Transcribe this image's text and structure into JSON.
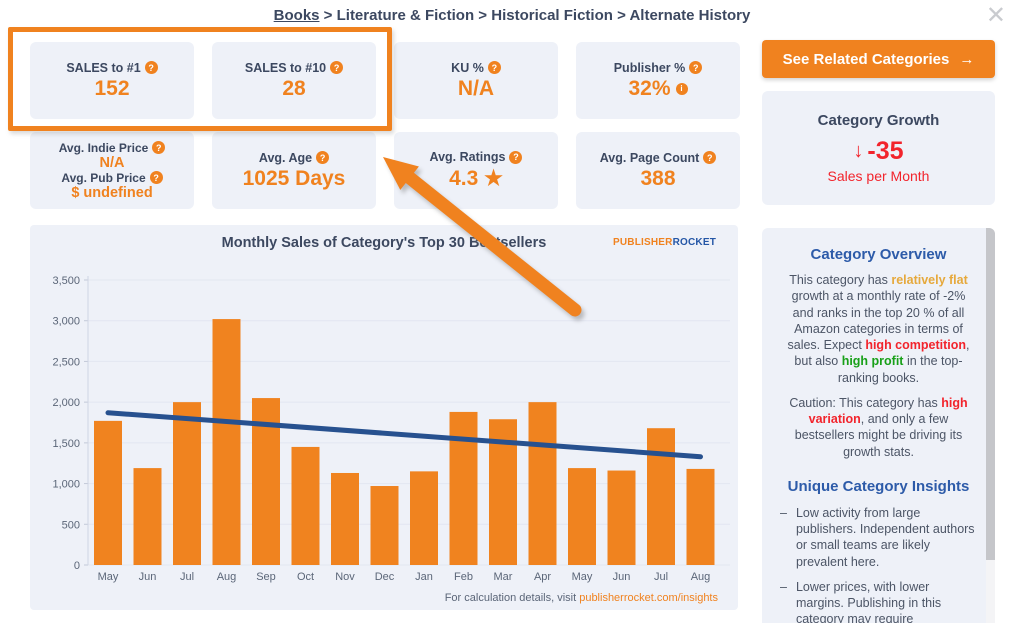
{
  "colors": {
    "accent_orange": "#f0821f",
    "navy": "#3c4860",
    "heading_blue": "#2d5ba9",
    "alert_red": "#f2242c",
    "good_green": "#18a018",
    "flat_gold": "#e6a93c",
    "card_bg": "#eef1f8"
  },
  "breadcrumb": {
    "items": [
      "Books",
      "Literature & Fiction",
      "Historical Fiction",
      "Alternate History"
    ],
    "separator": " > "
  },
  "icons": {
    "help": "?",
    "info": "i",
    "close": "✕",
    "star": "★",
    "button_arrow": "→",
    "down_arrow": "↓",
    "bullet": "–"
  },
  "stats": {
    "cards": [
      {
        "label": "SALES to #1",
        "value": "152"
      },
      {
        "label": "SALES to #10",
        "value": "28"
      },
      {
        "label": "KU %",
        "value": "N/A"
      },
      {
        "label": "Publisher %",
        "value": "32%"
      },
      {
        "label1": "Avg. Indie Price",
        "value1": "N/A",
        "label2": "Avg. Pub Price",
        "value2": "$ undefined"
      },
      {
        "label": "Avg. Age",
        "value": "1025 Days"
      },
      {
        "label": "Avg. Ratings",
        "value": "4.3 ★"
      },
      {
        "label": "Avg. Page Count",
        "value": "388"
      }
    ]
  },
  "related_button": {
    "label": "See Related Categories"
  },
  "growth": {
    "title": "Category Growth",
    "value": "-35",
    "unit": "Sales per Month"
  },
  "overview": {
    "title": "Category Overview",
    "paragraphs": [
      [
        {
          "t": "This category has "
        },
        {
          "t": "relatively flat",
          "c": "gold"
        },
        {
          "t": " growth at a monthly rate of -2% and ranks in the top 20 % of all Amazon categories in terms of sales. Expect "
        },
        {
          "t": "high competition",
          "c": "red"
        },
        {
          "t": ", but also "
        },
        {
          "t": "high profit",
          "c": "green"
        },
        {
          "t": " in the top-ranking books."
        }
      ],
      [
        {
          "t": "Caution: This category has "
        },
        {
          "t": "high variation",
          "c": "red"
        },
        {
          "t": ", and only a few bestsellers might be driving its growth stats."
        }
      ]
    ]
  },
  "insights": {
    "title": "Unique Category Insights",
    "items": [
      "Low activity from large publishers. Independent authors or small teams are likely prevalent here.",
      "Lower prices, with lower margins. Publishing in this category may require competitive pricing."
    ]
  },
  "chart_data": {
    "type": "bar",
    "title": "Monthly Sales of Category's Top 30 Bestsellers",
    "categories": [
      "May",
      "Jun",
      "Jul",
      "Aug",
      "Sep",
      "Oct",
      "Nov",
      "Dec",
      "Jan",
      "Feb",
      "Mar",
      "Apr",
      "May",
      "Jun",
      "Jul",
      "Aug"
    ],
    "values": [
      1770,
      1190,
      2000,
      3020,
      2050,
      1450,
      1130,
      970,
      1150,
      1880,
      1790,
      2000,
      1190,
      1160,
      1680,
      1180
    ],
    "trendline": {
      "start": 1870,
      "end": 1330
    },
    "ylim": [
      0,
      3500
    ],
    "ytick_step": 500,
    "grid": true,
    "bar_color": "#f0831f",
    "trend_color": "#27518f",
    "logo_part1": "PUBLISHER",
    "logo_part2": "ROCKET",
    "footer_prefix": "For calculation details, visit ",
    "footer_link": "publisherrocket.com/insights"
  }
}
